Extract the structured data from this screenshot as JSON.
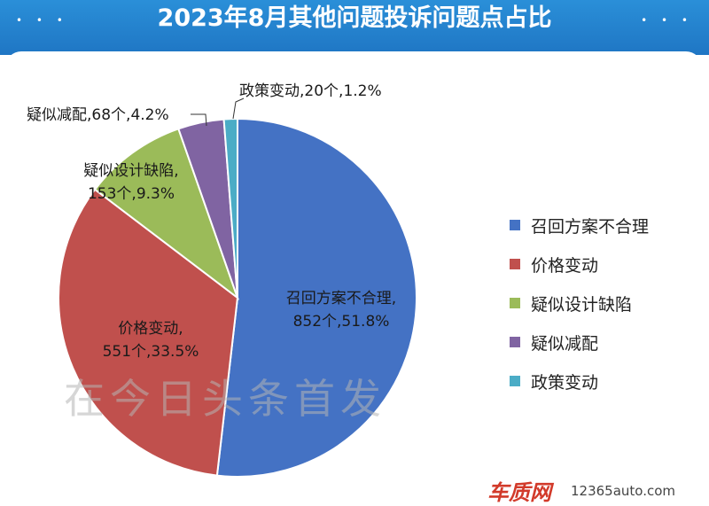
{
  "chart_data": {
    "type": "pie",
    "title": "2023年8月其他问题投诉问题点占比",
    "slices": [
      {
        "name": "召回方案不合理",
        "count_label": "852个",
        "percent_label": "51.8%",
        "value": 852,
        "percent": 51.8,
        "color": "#4472c4"
      },
      {
        "name": "价格变动",
        "count_label": "551个",
        "percent_label": "33.5%",
        "value": 551,
        "percent": 33.5,
        "color": "#c0504d"
      },
      {
        "name": "疑似设计缺陷",
        "count_label": "153个",
        "percent_label": "9.3%",
        "value": 153,
        "percent": 9.3,
        "color": "#9bbb59"
      },
      {
        "name": "疑似减配",
        "count_label": "68个",
        "percent_label": "4.2%",
        "value": 68,
        "percent": 4.2,
        "color": "#8064a2"
      },
      {
        "name": "政策变动",
        "count_label": "20个",
        "percent_label": "1.2%",
        "value": 20,
        "percent": 1.2,
        "color": "#4bacc6"
      }
    ],
    "legend_position": "right"
  },
  "labels": {
    "recall_line1": "召回方案不合理,",
    "recall_line2": "852个,51.8%",
    "price_line1": "价格变动,",
    "price_line2": "551个,33.5%",
    "design_line1": "疑似设计缺陷,",
    "design_line2": "153个,9.3%",
    "reduce": "疑似减配,68个,4.2%",
    "policy": "政策变动,20个,1.2%"
  },
  "watermark": "在今日头条首发",
  "footer": {
    "logo": "车质网",
    "url": "12365auto.com"
  }
}
